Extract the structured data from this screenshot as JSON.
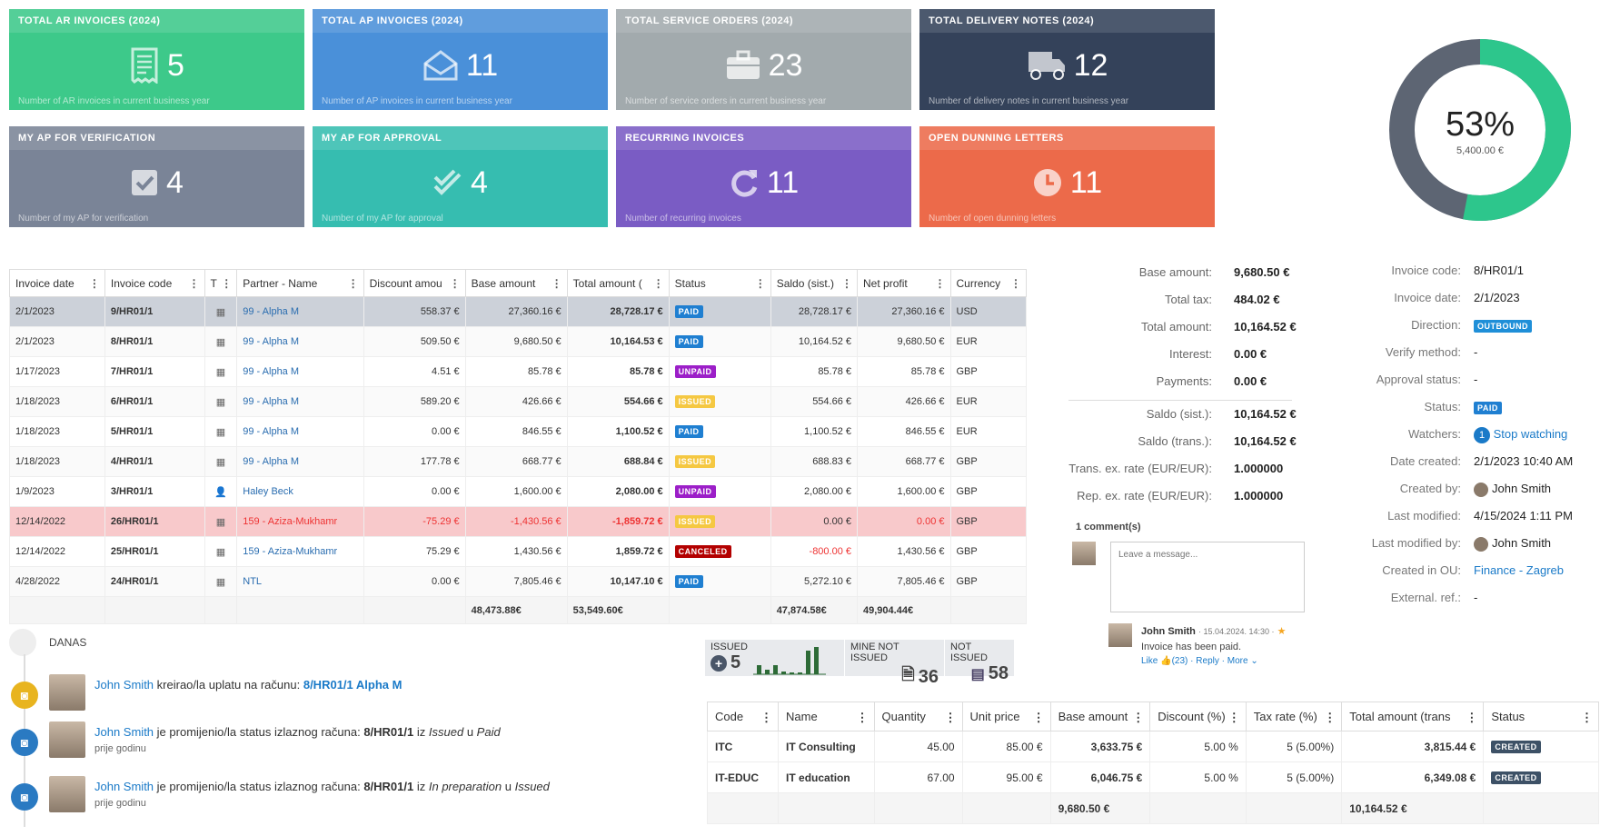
{
  "tiles": [
    {
      "title": "TOTAL AR INVOICES (2024)",
      "value": "5",
      "foot": "Number of AR invoices in current business year",
      "color": "#3dc98a",
      "icon": "receipt-icon"
    },
    {
      "title": "TOTAL AP INVOICES (2024)",
      "value": "11",
      "foot": "Number of AP invoices in current business year",
      "color": "#4a90d9",
      "icon": "envelope-icon"
    },
    {
      "title": "TOTAL SERVICE ORDERS (2024)",
      "value": "23",
      "foot": "Number of service orders in current business year",
      "color": "#a2aaad",
      "icon": "briefcase-icon"
    },
    {
      "title": "TOTAL DELIVERY NOTES (2024)",
      "value": "12",
      "foot": "Number of delivery notes in current business year",
      "color": "#34425a",
      "icon": "truck-icon"
    },
    {
      "title": "MY AP FOR VERIFICATION",
      "value": "4",
      "foot": "Number of my AP for verification",
      "color": "#7a8497",
      "icon": "checkbox-icon"
    },
    {
      "title": "MY AP FOR APPROVAL",
      "value": "4",
      "foot": "Number of my AP for approval",
      "color": "#36bdb0",
      "icon": "double-check-icon"
    },
    {
      "title": "RECURRING INVOICES",
      "value": "11",
      "foot": "Number of recurring invoices",
      "color": "#7a5cc4",
      "icon": "refresh-icon"
    },
    {
      "title": "OPEN DUNNING LETTERS",
      "value": "11",
      "foot": "Number of open dunning letters",
      "color": "#ec6a4a",
      "icon": "clock-icon"
    }
  ],
  "gauge": {
    "percent": "53%",
    "fraction": 0.53,
    "amount": "5,400.00 €",
    "fill": "#2dc68c",
    "track": "#5d6573"
  },
  "invoice_table": {
    "headers": [
      "Invoice date",
      "Invoice code",
      "T",
      "Partner - Name",
      "Discount amou",
      "Base amount",
      "Total amount (",
      "Status",
      "Saldo (sist.)",
      "Net profit",
      "Currency"
    ],
    "rows": [
      {
        "date": "2/1/2023",
        "code": "9/HR01/1",
        "partner": "99 - Alpha M",
        "discount": "558.37 €",
        "base": "27,360.16 €",
        "total": "28,728.17 €",
        "status": "PAID",
        "saldo": "28,728.17 €",
        "net": "27,360.16 €",
        "currency": "USD"
      },
      {
        "date": "2/1/2023",
        "code": "8/HR01/1",
        "partner": "99 - Alpha M",
        "discount": "509.50 €",
        "base": "9,680.50 €",
        "total": "10,164.53 €",
        "status": "PAID",
        "saldo": "10,164.52 €",
        "net": "9,680.50 €",
        "currency": "EUR"
      },
      {
        "date": "1/17/2023",
        "code": "7/HR01/1",
        "partner": "99 - Alpha M",
        "discount": "4.51 €",
        "base": "85.78 €",
        "total": "85.78 €",
        "status": "UNPAID",
        "saldo": "85.78 €",
        "net": "85.78 €",
        "currency": "GBP"
      },
      {
        "date": "1/18/2023",
        "code": "6/HR01/1",
        "partner": "99 - Alpha M",
        "discount": "589.20 €",
        "base": "426.66 €",
        "total": "554.66 €",
        "status": "ISSUED",
        "saldo": "554.66 €",
        "net": "426.66 €",
        "currency": "EUR"
      },
      {
        "date": "1/18/2023",
        "code": "5/HR01/1",
        "partner": "99 - Alpha M",
        "discount": "0.00 €",
        "base": "846.55 €",
        "total": "1,100.52 €",
        "status": "PAID",
        "saldo": "1,100.52 €",
        "net": "846.55 €",
        "currency": "EUR"
      },
      {
        "date": "1/18/2023",
        "code": "4/HR01/1",
        "partner": "99 - Alpha M",
        "discount": "177.78 €",
        "base": "668.77 €",
        "total": "688.84 €",
        "status": "ISSUED",
        "saldo": "688.83 €",
        "net": "668.77 €",
        "currency": "GBP"
      },
      {
        "date": "1/9/2023",
        "code": "3/HR01/1",
        "partner": "Haley Beck",
        "discount": "0.00 €",
        "base": "1,600.00 €",
        "total": "2,080.00 €",
        "status": "UNPAID",
        "saldo": "2,080.00 €",
        "net": "1,600.00 €",
        "currency": "GBP"
      },
      {
        "date": "12/14/2022",
        "code": "26/HR01/1",
        "partner": "159 - Aziza-Mukhamr",
        "discount": "-75.29 €",
        "base": "-1,430.56 €",
        "total": "-1,859.72 €",
        "status": "ISSUED",
        "saldo": "0.00 €",
        "net": "0.00 €",
        "currency": "GBP"
      },
      {
        "date": "12/14/2022",
        "code": "25/HR01/1",
        "partner": "159 - Aziza-Mukhamr",
        "discount": "75.29 €",
        "base": "1,430.56 €",
        "total": "1,859.72 €",
        "status": "CANCELED",
        "saldo": "-800.00 €",
        "net": "1,430.56 €",
        "currency": "GBP"
      },
      {
        "date": "4/28/2022",
        "code": "24/HR01/1",
        "partner": "NTL",
        "discount": "0.00 €",
        "base": "7,805.46 €",
        "total": "10,147.10 €",
        "status": "PAID",
        "saldo": "5,272.10 €",
        "net": "7,805.46 €",
        "currency": "GBP"
      }
    ],
    "totals": {
      "base": "48,473.88€",
      "total": "53,549.60€",
      "saldo": "47,874.58€",
      "net": "49,904.44€"
    }
  },
  "summary": [
    {
      "label": "Base amount:",
      "value": "9,680.50 €"
    },
    {
      "label": "Total tax:",
      "value": "484.02 €"
    },
    {
      "label": "Total amount:",
      "value": "10,164.52 €"
    },
    {
      "label": "Interest:",
      "value": "0.00 €"
    },
    {
      "label": "Payments:",
      "value": "0.00 €"
    },
    {
      "label": "Saldo (sist.):",
      "value": "10,164.52 €"
    },
    {
      "label": "Saldo (trans.):",
      "value": "10,164.52 €"
    },
    {
      "label": "Trans. ex. rate (EUR/EUR):",
      "value": "1.000000"
    },
    {
      "label": "Rep. ex. rate (EUR/EUR):",
      "value": "1.000000"
    }
  ],
  "meta": {
    "invoice_code": {
      "label": "Invoice code:",
      "value": "8/HR01/1"
    },
    "invoice_date": {
      "label": "Invoice date:",
      "value": "2/1/2023"
    },
    "direction": {
      "label": "Direction:",
      "value": "OUTBOUND"
    },
    "verify": {
      "label": "Verify method:",
      "value": "-"
    },
    "approval": {
      "label": "Approval status:",
      "value": "-"
    },
    "status": {
      "label": "Status:",
      "value": "PAID"
    },
    "watchers": {
      "label": "Watchers:",
      "count": "1",
      "link": "Stop watching"
    },
    "date_created": {
      "label": "Date created:",
      "value": "2/1/2023 10:40 AM"
    },
    "created_by": {
      "label": "Created by:",
      "value": "John Smith"
    },
    "last_modified": {
      "label": "Last modified:",
      "value": "4/15/2024 1:11 PM"
    },
    "last_modified_by": {
      "label": "Last modified by:",
      "value": "John Smith"
    },
    "created_ou": {
      "label": "Created in OU:",
      "value": "Finance - Zagreb"
    },
    "external_ref": {
      "label": "External. ref.:",
      "value": "-"
    }
  },
  "comments": {
    "count": "1 comment(s)",
    "placeholder": "Leave a message...",
    "author": "John Smith",
    "date": "· 15.04.2024. 14:30 ·",
    "text": "Invoice has been paid.",
    "like": "Like",
    "likes": "(23)",
    "reply": "Reply",
    "more": "More"
  },
  "timeline": {
    "day": "DANAS",
    "entries": [
      {
        "user": "John Smith",
        "action": "kreirao/la uplatu na računu:",
        "target": "8/HR01/1 Alpha M",
        "from": "",
        "to": "",
        "sub": "",
        "color": "#e8b41f"
      },
      {
        "user": "John Smith",
        "action": "je promijenio/la status izlaznog računa:",
        "target": "8/HR01/1",
        "join1": "iz",
        "from": "Issued",
        "join2": "u",
        "to": "Paid",
        "sub": "prije godinu",
        "color": "#2a7ac2"
      },
      {
        "user": "John Smith",
        "action": "je promijenio/la status izlaznog računa:",
        "target": "8/HR01/1",
        "join1": "iz",
        "from": "In preparation",
        "join2": "u",
        "to": "Issued",
        "sub": "prije godinu",
        "color": "#2a7ac2"
      }
    ]
  },
  "stats": {
    "issued_label": "ISSUED",
    "issued": "5",
    "mine_label": "MINE NOT ISSUED",
    "mine": "36",
    "not_label": "NOT ISSUED",
    "not": "58",
    "bars": [
      0.3,
      0.15,
      0.3,
      0.1,
      0.05,
      0.05,
      0.8,
      0.95
    ]
  },
  "items_table": {
    "headers": [
      "Code",
      "Name",
      "Quantity",
      "Unit price",
      "Base amount",
      "Discount (%)",
      "Tax rate (%)",
      "Total amount (trans",
      "Status"
    ],
    "rows": [
      {
        "code": "ITC",
        "name": "IT Consulting",
        "qty": "45.00",
        "unit": "85.00 €",
        "base": "3,633.75 €",
        "disc": "5.00 %",
        "tax": "5 (5.00%)",
        "total": "3,815.44 €",
        "status": "CREATED"
      },
      {
        "code": "IT-EDUC",
        "name": "IT education",
        "qty": "67.00",
        "unit": "95.00 €",
        "base": "6,046.75 €",
        "disc": "5.00 %",
        "tax": "5 (5.00%)",
        "total": "6,349.08 €",
        "status": "CREATED"
      }
    ],
    "totals": {
      "base": "9,680.50 €",
      "total": "10,164.52 €"
    }
  }
}
